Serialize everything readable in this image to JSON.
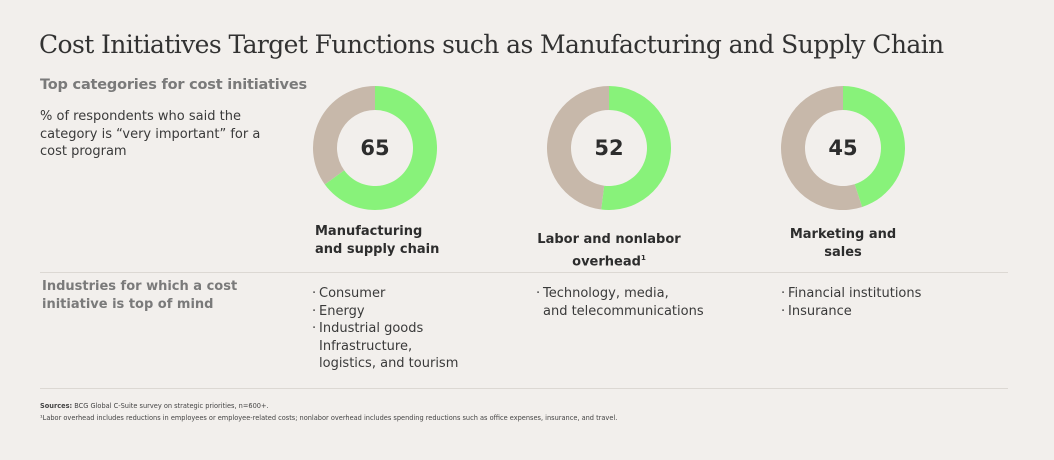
{
  "title": "Cost Initiatives Target Functions such as Manufacturing and Supply Chain",
  "subtitle": "Top categories for cost initiatives",
  "description": "% of respondents who said the category is “very important” for a cost program",
  "colors": {
    "highlight": "#88f27a",
    "remainder": "#c7b8aa",
    "background": "#f2efec"
  },
  "chart_data": {
    "type": "pie",
    "variant": "donut",
    "title": "Top categories for cost initiatives",
    "unit": "% of respondents",
    "categories": [
      "Manufacturing and supply chain",
      "Labor and nonlabor overhead¹",
      "Marketing and sales"
    ],
    "values": [
      65,
      52,
      45
    ],
    "max": 100
  },
  "categories": [
    {
      "value": "65",
      "label_line1": "Manufacturing",
      "label_line2": "and supply chain",
      "footnote_mark": ""
    },
    {
      "value": "52",
      "label_line1": "Labor and nonlabor",
      "label_line2": "overhead",
      "footnote_mark": "1"
    },
    {
      "value": "45",
      "label_line1": "Marketing and",
      "label_line2": "sales",
      "footnote_mark": ""
    }
  ],
  "industries": {
    "heading": "Industries for which a cost initiative is top of mind",
    "bullet": "·",
    "columns": [
      {
        "items": [
          "Consumer",
          "Energy",
          "Industrial goods"
        ],
        "continuation": [
          "Infrastructure,",
          "logistics, and tourism"
        ]
      },
      {
        "items": [
          "Technology, media,"
        ],
        "continuation": [
          "and telecommunications"
        ]
      },
      {
        "items": [
          "Financial institutions",
          "Insurance"
        ],
        "continuation": []
      }
    ]
  },
  "sources": {
    "label": "Sources:",
    "text": " BCG Global C-Suite survey on strategic priorities, n=600+."
  },
  "footnote": "¹Labor overhead includes reductions in employees or employee-related costs; nonlabor overhead includes spending reductions such as office expenses, insurance, and travel."
}
